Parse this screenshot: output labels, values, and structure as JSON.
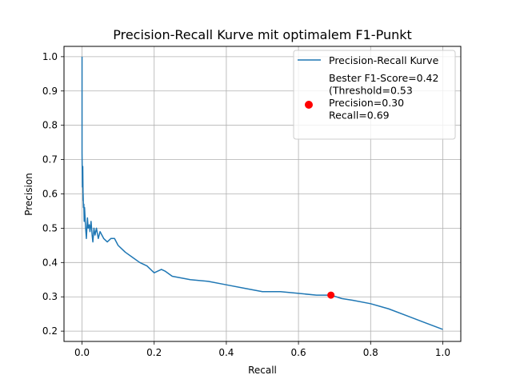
{
  "chart_data": {
    "type": "line",
    "title": "Precision-Recall Kurve mit optimalem F1-Punkt",
    "xlabel": "Recall",
    "ylabel": "Precision",
    "xlim": [
      -0.05,
      1.05
    ],
    "ylim": [
      0.17,
      1.03
    ],
    "grid": true,
    "legend_position": "top-right",
    "x_ticks": [
      "0.0",
      "0.2",
      "0.4",
      "0.6",
      "0.8",
      "1.0"
    ],
    "y_ticks": [
      "0.2",
      "0.3",
      "0.4",
      "0.5",
      "0.6",
      "0.7",
      "0.8",
      "0.9",
      "1.0"
    ],
    "series": [
      {
        "name": "Precision-Recall Kurve",
        "color": "#1f77b4",
        "x": [
          0.0,
          0.0,
          0.001,
          0.002,
          0.003,
          0.003,
          0.004,
          0.005,
          0.006,
          0.007,
          0.008,
          0.01,
          0.012,
          0.014,
          0.015,
          0.017,
          0.02,
          0.022,
          0.025,
          0.028,
          0.03,
          0.033,
          0.036,
          0.04,
          0.045,
          0.05,
          0.055,
          0.06,
          0.07,
          0.08,
          0.09,
          0.1,
          0.11,
          0.12,
          0.14,
          0.16,
          0.18,
          0.2,
          0.22,
          0.23,
          0.25,
          0.3,
          0.35,
          0.4,
          0.45,
          0.5,
          0.55,
          0.6,
          0.65,
          0.69,
          0.72,
          0.75,
          0.8,
          0.85,
          0.9,
          0.95,
          1.0
        ],
        "y": [
          1.0,
          0.72,
          0.62,
          0.68,
          0.58,
          0.6,
          0.56,
          0.57,
          0.52,
          0.56,
          0.54,
          0.5,
          0.47,
          0.51,
          0.53,
          0.5,
          0.51,
          0.49,
          0.52,
          0.48,
          0.46,
          0.5,
          0.48,
          0.5,
          0.47,
          0.49,
          0.48,
          0.47,
          0.46,
          0.47,
          0.47,
          0.45,
          0.44,
          0.43,
          0.415,
          0.4,
          0.39,
          0.37,
          0.38,
          0.375,
          0.36,
          0.35,
          0.345,
          0.335,
          0.325,
          0.315,
          0.315,
          0.31,
          0.305,
          0.305,
          0.295,
          0.29,
          0.28,
          0.265,
          0.245,
          0.225,
          0.205
        ]
      }
    ],
    "highlight_point": {
      "x": 0.69,
      "y": 0.305,
      "color": "#ff0000",
      "legend_label": "Bester F1-Score=0.42\n(Threshold=0.53\nPrecision=0.30\nRecall=0.69"
    },
    "legend": [
      {
        "label": "Precision-Recall Kurve",
        "marker": "line",
        "color": "#1f77b4"
      },
      {
        "label": "Bester F1-Score=0.42\n(Threshold=0.53\nPrecision=0.30\nRecall=0.69",
        "marker": "dot",
        "color": "#ff0000"
      }
    ]
  }
}
